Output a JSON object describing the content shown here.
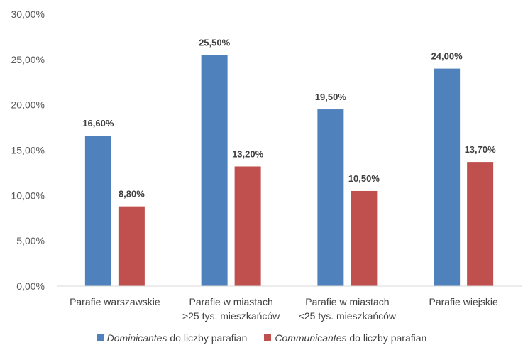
{
  "chart_data": {
    "type": "bar",
    "categories": [
      [
        "Parafie warszawskie"
      ],
      [
        "Parafie w miastach",
        ">25 tys. mieszkańców"
      ],
      [
        "Parafie w miastach",
        "<25 tys. mieszkańców"
      ],
      [
        "Parafie wiejskie"
      ]
    ],
    "series": [
      {
        "name_italic": "Dominicantes",
        "name_rest": " do liczby parafian",
        "color": "#4f81bd",
        "values": [
          16.6,
          25.5,
          19.5,
          24.0
        ],
        "labels": [
          "16,60%",
          "25,50%",
          "19,50%",
          "24,00%"
        ]
      },
      {
        "name_italic": "Communicantes",
        "name_rest": " do liczby parafian",
        "color": "#c0504d",
        "values": [
          8.8,
          13.2,
          10.5,
          13.7
        ],
        "labels": [
          "8,80%",
          "13,20%",
          "10,50%",
          "13,70%"
        ]
      }
    ],
    "ylim": [
      0,
      30
    ],
    "yticks": [
      0,
      5,
      10,
      15,
      20,
      25,
      30
    ],
    "ytick_labels": [
      "0,00%",
      "5,00%",
      "10,00%",
      "15,00%",
      "20,00%",
      "25,00%",
      "30,00%"
    ],
    "grid": false,
    "legend_position": "bottom"
  }
}
